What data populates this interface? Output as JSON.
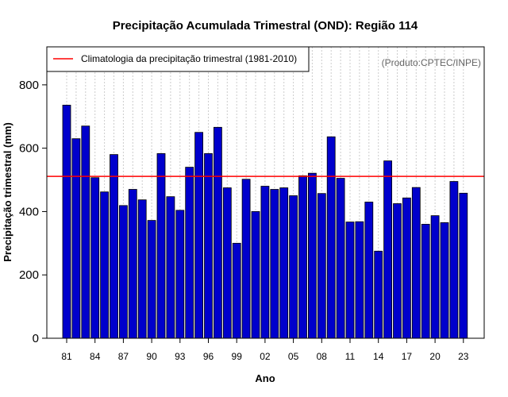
{
  "chart_data": {
    "type": "bar",
    "title": "Precipitação Acumulada Trimestral (OND): Região 114",
    "xlabel": "Ano",
    "ylabel": "Precipitação trimestral (mm)",
    "source_note": "(Produto:CPTEC/INPE)",
    "legend": {
      "label": "Climatologia da precipitação trimestral (1981-2010)",
      "placement": "top-left",
      "line_color": "#ff0000"
    },
    "climatology_value": 511,
    "ylim": [
      0,
      920
    ],
    "y_ticks": [
      0,
      200,
      400,
      600,
      800
    ],
    "bar_color": "#0000cc",
    "years": [
      "1981",
      "1982",
      "1983",
      "1984",
      "1985",
      "1986",
      "1987",
      "1988",
      "1989",
      "1990",
      "1991",
      "1992",
      "1993",
      "1994",
      "1995",
      "1996",
      "1997",
      "1998",
      "1999",
      "2000",
      "2001",
      "2002",
      "2003",
      "2004",
      "2005",
      "2006",
      "2007",
      "2008",
      "2009",
      "2010",
      "2011",
      "2012",
      "2013",
      "2014",
      "2015",
      "2016",
      "2017",
      "2018",
      "2019",
      "2020",
      "2021",
      "2022",
      "2023"
    ],
    "values": [
      736,
      630,
      670,
      507,
      462,
      580,
      419,
      470,
      437,
      372,
      583,
      447,
      404,
      540,
      650,
      583,
      666,
      475,
      300,
      502,
      400,
      480,
      470,
      475,
      450,
      513,
      521,
      457,
      636,
      505,
      367,
      368,
      430,
      275,
      560,
      425,
      443,
      476,
      360,
      387,
      365,
      495,
      458
    ],
    "x_tick_labels": [
      "81",
      "84",
      "87",
      "90",
      "93",
      "96",
      "99",
      "02",
      "05",
      "08",
      "11",
      "14",
      "17",
      "20",
      "23"
    ],
    "x_tick_indices": [
      0,
      3,
      6,
      9,
      12,
      15,
      18,
      21,
      24,
      27,
      30,
      33,
      36,
      39,
      42
    ],
    "grid": "vertical dotted"
  }
}
